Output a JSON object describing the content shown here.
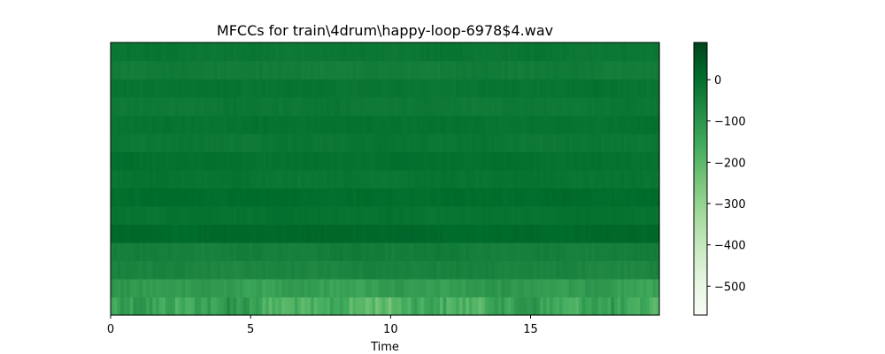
{
  "chart_data": {
    "type": "heatmap",
    "title": "MFCCs for train\\4drum\\happy-loop-6978$4.wav",
    "xlabel": "Time",
    "ylabel": "",
    "x_range": [
      0,
      19.6
    ],
    "x_ticks": [
      0,
      5,
      10,
      15
    ],
    "y_axis_visible": false,
    "colormap": "Greens",
    "n_coefficients": 15,
    "n_frames": 170,
    "colorbar": {
      "range": [
        -570,
        90
      ],
      "ticks": [
        0,
        -100,
        -200,
        -300,
        -400,
        -500
      ],
      "tick_labels": [
        "0",
        "−100",
        "−200",
        "−300",
        "−400",
        "−500"
      ]
    },
    "row_mean_values": [
      -160,
      -120,
      -55,
      -40,
      15,
      -10,
      5,
      -15,
      -5,
      -20,
      -10,
      -25,
      -15,
      -35,
      -20
    ],
    "row_variation": [
      70,
      25,
      12,
      10,
      8,
      8,
      8,
      8,
      8,
      8,
      8,
      8,
      8,
      8,
      8
    ]
  }
}
